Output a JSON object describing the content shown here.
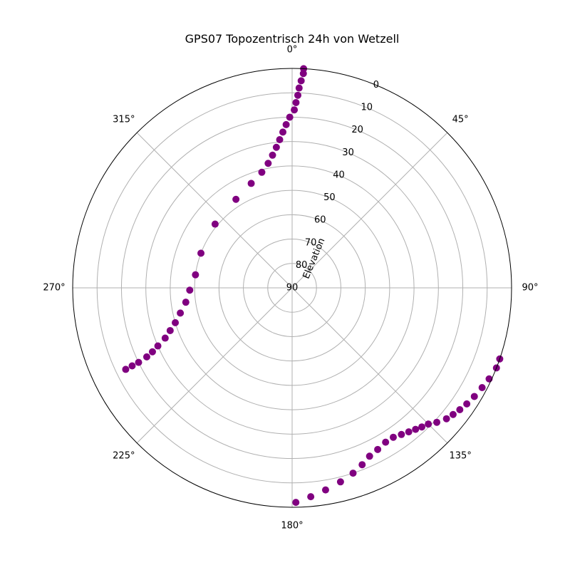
{
  "chart_data": {
    "type": "scatter",
    "projection": "polar",
    "title": "GPS07 Topozentrisch 24h von Wetzell",
    "theta_zero_location": "N",
    "theta_direction": "clockwise",
    "theta_ticks": [
      {
        "value": 0,
        "label": "0°"
      },
      {
        "value": 45,
        "label": "45°"
      },
      {
        "value": 90,
        "label": "90°"
      },
      {
        "value": 135,
        "label": "135°"
      },
      {
        "value": 180,
        "label": "180°"
      },
      {
        "value": 225,
        "label": "225°"
      },
      {
        "value": 270,
        "label": "270°"
      },
      {
        "value": 315,
        "label": "315°"
      }
    ],
    "r_label": "Elevation",
    "r_label_azimuth_deg": 22.5,
    "r_ticks": [
      "0",
      "10",
      "20",
      "30",
      "40",
      "50",
      "60",
      "70",
      "80",
      "90"
    ],
    "r_tick_values": [
      0,
      10,
      20,
      30,
      40,
      50,
      60,
      70,
      80,
      90
    ],
    "r_axis": {
      "outer_value": 0,
      "center_value": 90
    },
    "grid": true,
    "marker_color": "#800080",
    "series": [
      {
        "segments": [
          {
            "azimuth_deg": [
              3,
              3,
              2.5,
              2,
              1.7,
              1.2,
              0.7,
              359.2,
              357.9,
              356.6,
              355.2,
              353.6,
              351.6,
              349.1,
              345.3,
              338.6,
              327.6,
              309.6,
              290.8,
              277.7,
              268.7,
              262.3,
              257.3,
              253.4,
              250.7,
              248.4,
              246.6,
              245.4,
              244.6,
              244.1,
              244.0,
              243.9
            ],
            "elevation_deg": [
              0,
              2,
              5,
              8,
              11,
              14,
              17,
              20,
              23,
              26,
              29,
              32,
              35,
              38,
              41,
              44,
              47,
              49,
              50,
              50,
              48,
              46,
              43,
              40,
              37,
              34,
              30,
              27,
              24,
              20,
              17,
              14
            ]
          },
          {
            "azimuth_deg": [
              179.0,
              174.9,
              170.6,
              166.0,
              161.8,
              158.4,
              155.3,
              152.1,
              148.8,
              145.9,
              143.3,
              141.0,
              138.9,
              137.0,
              135.0,
              132.9,
              130.3,
              128.2,
              126.0,
              123.6,
              120.8,
              117.7,
              114.8,
              111.4,
              108.9
            ],
            "elevation_deg": [
              2,
              4,
              6,
              8,
              10,
              12,
              14,
              15,
              16,
              16,
              15,
              14,
              13,
              12,
              11,
              9,
              7,
              6,
              5,
              4,
              3,
              2,
              1,
              0,
              0
            ]
          }
        ]
      }
    ]
  }
}
